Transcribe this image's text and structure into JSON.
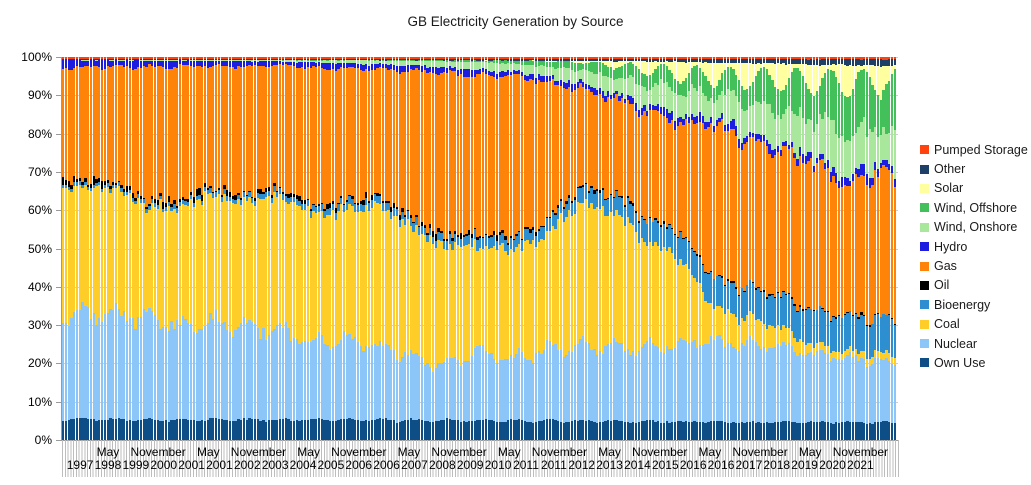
{
  "title": "GB Electricity Generation by Source",
  "y_axis": {
    "ticks": [
      "100%",
      "90%",
      "80%",
      "70%",
      "60%",
      "50%",
      "40%",
      "30%",
      "20%",
      "10%",
      "0%"
    ],
    "min": 0,
    "max": 100,
    "unit": "%"
  },
  "x_axis": {
    "month_labels": [
      "May",
      "November",
      "May",
      "November",
      "May",
      "November",
      "May",
      "November",
      "May",
      "November",
      "May",
      "November",
      "May",
      "November",
      "May",
      "November"
    ],
    "month_label_start_index": 16,
    "month_label_step": 18,
    "year_labels": [
      "1997",
      "1998",
      "1999",
      "2000",
      "2001",
      "2001",
      "2002",
      "2003",
      "2004",
      "2005",
      "2006",
      "2006",
      "2007",
      "2008",
      "2009",
      "2010",
      "2011",
      "2011",
      "2012",
      "2013",
      "2014",
      "2015",
      "2016",
      "2016",
      "2017",
      "2018",
      "2019",
      "2020",
      "2021"
    ],
    "year_label_start_index": 6,
    "year_label_step": 10
  },
  "legend": {
    "position": "right",
    "items": [
      {
        "label": "Pumped Storage",
        "color": "#ff420e"
      },
      {
        "label": "Other",
        "color": "#1e3f66"
      },
      {
        "label": "Solar",
        "color": "#ffffa0"
      },
      {
        "label": "Wind, Offshore",
        "color": "#44c05a"
      },
      {
        "label": "Wind, Onshore",
        "color": "#a9e79c"
      },
      {
        "label": "Hydro",
        "color": "#1d1de0"
      },
      {
        "label": "Gas",
        "color": "#fd8408"
      },
      {
        "label": "Oil",
        "color": "#000000"
      },
      {
        "label": "Bioenergy",
        "color": "#2e8fd0"
      },
      {
        "label": "Coal",
        "color": "#ffcd28"
      },
      {
        "label": "Nuclear",
        "color": "#8cc5f8"
      },
      {
        "label": "Own Use",
        "color": "#0d4e87"
      }
    ]
  },
  "chart_data": {
    "type": "bar",
    "variant": "stacked-100-percent",
    "title": "GB Electricity Generation by Source",
    "xlabel": "",
    "ylabel": "",
    "ylim": [
      0,
      100
    ],
    "grid": "horizontal-10pct",
    "legend_position": "right",
    "x_resolution": "monthly",
    "x_start": "January 1997",
    "x_end": "December 2021",
    "n_points": 300,
    "years": [
      1997,
      1998,
      1999,
      2000,
      2001,
      2002,
      2003,
      2004,
      2005,
      2006,
      2007,
      2008,
      2009,
      2010,
      2011,
      2012,
      2013,
      2014,
      2015,
      2016,
      2017,
      2018,
      2019,
      2020,
      2021
    ],
    "note": "Series listed bottom-to-top of the stack; yearly_share_pct are approximate annual shares (%) read from the chart, rendered monthly with seasonal variation.",
    "series": [
      {
        "name": "Own Use",
        "color": "#0d4e87",
        "yearly_share_pct": [
          5.3,
          5.3,
          5.2,
          5.2,
          5.2,
          5.2,
          5.2,
          5.2,
          5.2,
          5.2,
          5.0,
          5.0,
          5.0,
          5.0,
          5.0,
          4.9,
          4.9,
          4.8,
          4.7,
          4.7,
          4.6,
          4.6,
          4.5,
          4.5,
          4.5
        ]
      },
      {
        "name": "Nuclear",
        "color": "#8cc5f8",
        "yearly_share_pct": [
          26.5,
          27.5,
          26.5,
          24.0,
          25.0,
          24.0,
          23.0,
          20.0,
          20.5,
          19.0,
          16.0,
          14.0,
          18.0,
          16.0,
          18.5,
          19.5,
          20.0,
          19.0,
          20.5,
          21.0,
          20.5,
          19.5,
          17.5,
          16.5,
          15.5
        ]
      },
      {
        "name": "Coal",
        "color": "#ffcd28",
        "yearly_share_pct": [
          33.0,
          32.0,
          28.5,
          31.0,
          33.0,
          32.0,
          34.5,
          33.5,
          33.5,
          36.0,
          34.0,
          31.0,
          27.0,
          28.0,
          29.0,
          38.0,
          35.5,
          29.0,
          22.0,
          9.0,
          6.8,
          5.0,
          2.1,
          1.6,
          2.0
        ]
      },
      {
        "name": "Bioenergy",
        "color": "#2e8fd0",
        "yearly_share_pct": [
          0.8,
          0.9,
          1.0,
          1.1,
          1.1,
          1.2,
          1.5,
          1.6,
          1.9,
          1.9,
          2.0,
          2.1,
          2.6,
          2.9,
          3.1,
          3.6,
          4.6,
          5.6,
          6.6,
          7.6,
          7.8,
          8.2,
          8.6,
          8.8,
          9.0
        ]
      },
      {
        "name": "Oil",
        "color": "#000000",
        "yearly_share_pct": [
          1.3,
          1.0,
          0.9,
          0.9,
          0.9,
          0.8,
          0.7,
          0.7,
          0.8,
          0.8,
          0.7,
          0.9,
          0.8,
          0.7,
          0.5,
          0.5,
          0.4,
          0.3,
          0.3,
          0.3,
          0.3,
          0.3,
          0.3,
          0.3,
          0.3
        ]
      },
      {
        "name": "Gas",
        "color": "#fd8408",
        "yearly_share_pct": [
          29.0,
          29.5,
          34.5,
          34.5,
          31.0,
          33.5,
          31.5,
          35.5,
          34.0,
          32.5,
          38.0,
          42.0,
          40.0,
          42.0,
          36.0,
          26.0,
          25.0,
          28.0,
          28.0,
          39.5,
          38.0,
          36.5,
          37.5,
          33.0,
          37.5
        ]
      },
      {
        "name": "Hydro",
        "color": "#1d1de0",
        "yearly_share_pct": [
          1.8,
          1.6,
          1.6,
          1.5,
          1.2,
          1.4,
          1.0,
          1.4,
          1.4,
          1.3,
          1.4,
          1.4,
          1.5,
          1.0,
          1.6,
          1.5,
          1.4,
          1.8,
          1.9,
          1.7,
          1.8,
          1.7,
          1.8,
          2.1,
          1.9
        ]
      },
      {
        "name": "Wind, Onshore",
        "color": "#a9e79c",
        "yearly_share_pct": [
          0.1,
          0.2,
          0.2,
          0.2,
          0.3,
          0.3,
          0.3,
          0.5,
          0.7,
          1.0,
          1.2,
          1.5,
          2.0,
          1.9,
          2.7,
          3.2,
          4.6,
          5.4,
          6.7,
          6.2,
          8.4,
          9.0,
          9.6,
          11.0,
          9.5
        ]
      },
      {
        "name": "Wind, Offshore",
        "color": "#44c05a",
        "yearly_share_pct": [
          0,
          0,
          0,
          0,
          0,
          0,
          0.05,
          0.1,
          0.1,
          0.1,
          0.2,
          0.3,
          0.5,
          0.8,
          1.4,
          2.1,
          3.1,
          3.9,
          4.5,
          4.9,
          6.0,
          7.8,
          9.7,
          13.0,
          12.0
        ]
      },
      {
        "name": "Solar",
        "color": "#ffffa0",
        "yearly_share_pct": [
          0,
          0,
          0,
          0,
          0,
          0,
          0,
          0,
          0,
          0,
          0,
          0,
          0,
          0.02,
          0.1,
          0.3,
          1.0,
          2.0,
          3.0,
          3.5,
          3.9,
          4.0,
          4.1,
          4.4,
          4.3
        ]
      },
      {
        "name": "Other",
        "color": "#1e3f66",
        "yearly_share_pct": [
          0.25,
          0.25,
          0.25,
          0.25,
          0.3,
          0.3,
          0.3,
          0.3,
          0.3,
          0.3,
          0.35,
          0.35,
          0.4,
          0.45,
          0.5,
          0.55,
          0.6,
          0.7,
          0.8,
          1.0,
          1.1,
          1.2,
          1.4,
          1.5,
          1.6
        ]
      },
      {
        "name": "Pumped Storage",
        "color": "#ff420e",
        "yearly_share_pct": [
          0.5,
          0.5,
          0.5,
          0.5,
          0.5,
          0.5,
          0.5,
          0.5,
          0.5,
          0.5,
          0.5,
          0.5,
          0.5,
          0.5,
          0.5,
          0.5,
          0.5,
          0.5,
          0.5,
          0.5,
          0.5,
          0.5,
          0.6,
          0.6,
          0.6
        ]
      }
    ]
  }
}
